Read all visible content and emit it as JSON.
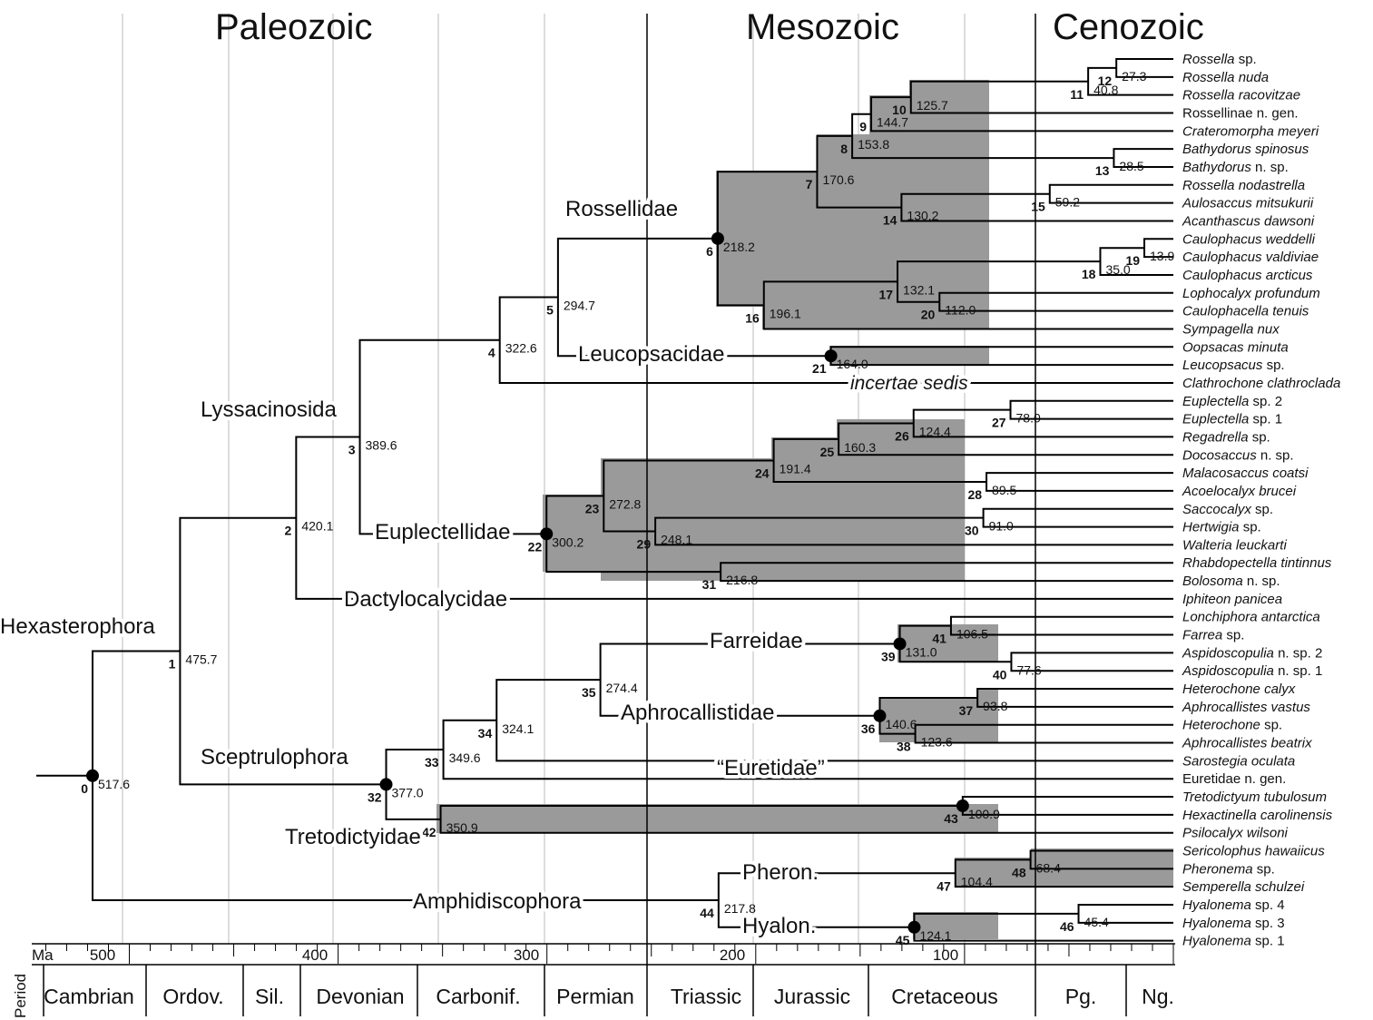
{
  "eras": [
    "Paleozoic",
    "Mesozoic",
    "Cenozoic"
  ],
  "axis": {
    "unit": "Ma",
    "ticks": [
      "500",
      "400",
      "300",
      "200",
      "100"
    ]
  },
  "periods": {
    "label": "Period",
    "names": [
      "Cambrian",
      "Ordov.",
      "Sil.",
      "Devonian",
      "Carbonif.",
      "Permian",
      "Triassic",
      "Jurassic",
      "Cretaceous",
      "Pg.",
      "Ng."
    ]
  },
  "clades": [
    "Rossellidae",
    "Leucopsacidae",
    "incertae sedis",
    "Lyssacinosida",
    "Euplectellidae",
    "Dactylocalycidae",
    "Hexasterophora",
    "Farreidae",
    "Aphrocallistidae",
    "Sceptrulophora",
    "“Euretidae”",
    "Tretodictyidae",
    "Pheron.",
    "Amphidiscophora",
    "Hyalon."
  ],
  "taxa": [
    "Rossella sp.",
    "Rossella nuda",
    "Rossella racovitzae",
    "Rossellinae n. gen.",
    "Crateromorpha meyeri",
    "Bathydorus spinosus",
    "Bathydorus n. sp.",
    "Rossella nodastrella",
    "Aulosaccus mitsukurii",
    "Acanthascus dawsoni",
    "Caulophacus weddelli",
    "Caulophacus valdiviae",
    "Caulophacus arcticus",
    "Lophocalyx profundum",
    "Caulophacella tenuis",
    "Sympagella nux",
    "Oopsacas minuta",
    "Leucopsacus sp.",
    "Clathrochone clathroclada",
    "Euplectella sp. 2",
    "Euplectella sp. 1",
    "Regadrella sp.",
    "Docosaccus n. sp.",
    "Malacosaccus coatsi",
    "Acoelocalyx brucei",
    "Saccocalyx sp.",
    "Hertwigia sp.",
    "Walteria leuckarti",
    "Rhabdopectella tintinnus",
    "Bolosoma n. sp.",
    "Iphiteon panicea",
    "Lonchiphora antarctica",
    "Farrea sp.",
    "Aspidoscopulia n. sp. 2",
    "Aspidoscopulia n. sp. 1",
    "Heterochone calyx",
    "Aphrocallistes vastus",
    "Heterochone sp.",
    "Aphrocallistes beatrix",
    "Sarostegia oculata",
    "Euretidae n. gen.",
    "Tretodictyum tubulosum",
    "Hexactinella carolinensis",
    "Psilocalyx wilsoni",
    "Sericolophus hawaiicus",
    "Pheronema sp.",
    "Semperella schulzei",
    "Hyalonema sp. 4",
    "Hyalonema sp. 3",
    "Hyalonema sp. 1"
  ],
  "nodes": [
    {
      "id": "0",
      "age": "517.6"
    },
    {
      "id": "1",
      "age": "475.7"
    },
    {
      "id": "2",
      "age": "420.1"
    },
    {
      "id": "3",
      "age": "389.6"
    },
    {
      "id": "4",
      "age": "322.6"
    },
    {
      "id": "5",
      "age": "294.7"
    },
    {
      "id": "6",
      "age": "218.2"
    },
    {
      "id": "7",
      "age": "170.6"
    },
    {
      "id": "8",
      "age": "153.8"
    },
    {
      "id": "9",
      "age": "144.7"
    },
    {
      "id": "10",
      "age": "125.7"
    },
    {
      "id": "11",
      "age": "40.8"
    },
    {
      "id": "12",
      "age": "27.3"
    },
    {
      "id": "13",
      "age": "28.5"
    },
    {
      "id": "14",
      "age": "130.2"
    },
    {
      "id": "15",
      "age": "59.2"
    },
    {
      "id": "16",
      "age": "196.1"
    },
    {
      "id": "17",
      "age": "132.1"
    },
    {
      "id": "18",
      "age": "35.0"
    },
    {
      "id": "19",
      "age": "13.9"
    },
    {
      "id": "20",
      "age": "112.0"
    },
    {
      "id": "21",
      "age": "164.0"
    },
    {
      "id": "22",
      "age": "300.2"
    },
    {
      "id": "23",
      "age": "272.8"
    },
    {
      "id": "24",
      "age": "191.4"
    },
    {
      "id": "25",
      "age": "160.3"
    },
    {
      "id": "26",
      "age": "124.4"
    },
    {
      "id": "27",
      "age": "78.0"
    },
    {
      "id": "28",
      "age": "89.5"
    },
    {
      "id": "29",
      "age": "248.1"
    },
    {
      "id": "30",
      "age": "91.0"
    },
    {
      "id": "31",
      "age": "216.8"
    },
    {
      "id": "32",
      "age": "377.0"
    },
    {
      "id": "33",
      "age": "349.6"
    },
    {
      "id": "34",
      "age": "324.1"
    },
    {
      "id": "35",
      "age": "274.4"
    },
    {
      "id": "36",
      "age": "140.6"
    },
    {
      "id": "37",
      "age": "93.8"
    },
    {
      "id": "38",
      "age": "123.6"
    },
    {
      "id": "39",
      "age": "131.0"
    },
    {
      "id": "40",
      "age": "77.6"
    },
    {
      "id": "41",
      "age": "106.5"
    },
    {
      "id": "42",
      "age": "350.9"
    },
    {
      "id": "43",
      "age": "100.9"
    },
    {
      "id": "44",
      "age": "217.8"
    },
    {
      "id": "45",
      "age": "124.1"
    },
    {
      "id": "46",
      "age": "45.4"
    },
    {
      "id": "47",
      "age": "104.4"
    },
    {
      "id": "48",
      "age": "68.4"
    }
  ]
}
